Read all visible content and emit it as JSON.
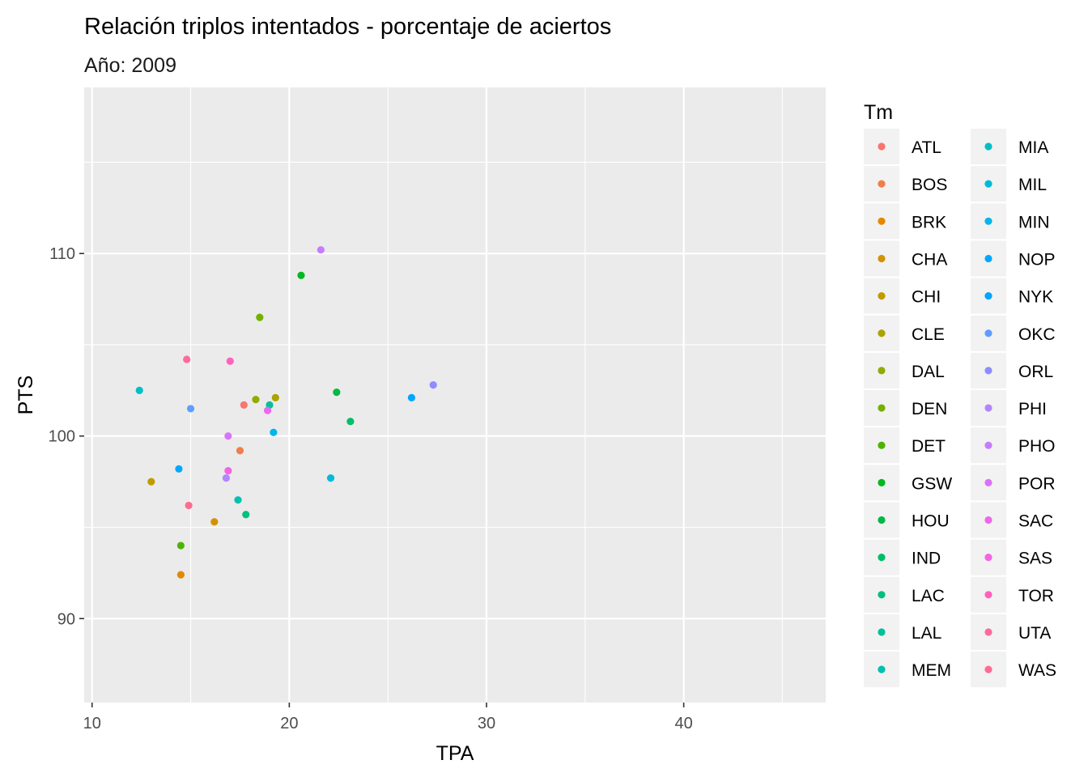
{
  "chart_data": {
    "type": "scatter",
    "title": "Relación triplos intentados - porcentaje de aciertos",
    "subtitle": "Año: 2009",
    "xlabel": "TPA",
    "ylabel": "PTS",
    "xlim": [
      9.6,
      47.2
    ],
    "ylim": [
      85.4,
      119.1
    ],
    "x_ticks": [
      10,
      20,
      30,
      40
    ],
    "y_ticks": [
      90,
      100,
      110
    ],
    "grid": true,
    "legend": {
      "title": "Tm",
      "placement": "right",
      "columns": 2,
      "entries": [
        {
          "label": "ATL",
          "color": "#F8766D"
        },
        {
          "label": "BOS",
          "color": "#F07E4B"
        },
        {
          "label": "BRK",
          "color": "#E38900"
        },
        {
          "label": "CHA",
          "color": "#D39200"
        },
        {
          "label": "CHI",
          "color": "#C09B00"
        },
        {
          "label": "CLE",
          "color": "#AAA300"
        },
        {
          "label": "DAL",
          "color": "#93AA00"
        },
        {
          "label": "DEN",
          "color": "#75B000"
        },
        {
          "label": "DET",
          "color": "#4CB400"
        },
        {
          "label": "GSW",
          "color": "#00B81F"
        },
        {
          "label": "HOU",
          "color": "#00BA44"
        },
        {
          "label": "IND",
          "color": "#00BE67"
        },
        {
          "label": "LAC",
          "color": "#00BF82"
        },
        {
          "label": "LAL",
          "color": "#00C19A"
        },
        {
          "label": "MEM",
          "color": "#00C0AF"
        },
        {
          "label": "MIA",
          "color": "#00BFC4"
        },
        {
          "label": "MIL",
          "color": "#00BBD7"
        },
        {
          "label": "MIN",
          "color": "#00B6EB"
        },
        {
          "label": "NOP",
          "color": "#00A9FF"
        },
        {
          "label": "NYK",
          "color": "#00A5FF"
        },
        {
          "label": "OKC",
          "color": "#619CFF"
        },
        {
          "label": "ORL",
          "color": "#8E8CFF"
        },
        {
          "label": "PHI",
          "color": "#B385FF"
        },
        {
          "label": "PHO",
          "color": "#C77CFF"
        },
        {
          "label": "POR",
          "color": "#DB72FB"
        },
        {
          "label": "SAC",
          "color": "#ED68ED"
        },
        {
          "label": "SAS",
          "color": "#F564E3"
        },
        {
          "label": "TOR",
          "color": "#FF62BC"
        },
        {
          "label": "UTA",
          "color": "#FF6A98"
        },
        {
          "label": "WAS",
          "color": "#FF6C91"
        }
      ]
    },
    "series": [
      {
        "name": "ATL",
        "x": [
          17.7
        ],
        "y": [
          101.7
        ]
      },
      {
        "name": "BOS",
        "x": [
          17.5
        ],
        "y": [
          99.2
        ]
      },
      {
        "name": "BRK",
        "x": [
          14.5
        ],
        "y": [
          92.4
        ]
      },
      {
        "name": "CHA",
        "x": [
          16.2
        ],
        "y": [
          95.3
        ]
      },
      {
        "name": "CHI",
        "x": [
          13.0
        ],
        "y": [
          97.5
        ]
      },
      {
        "name": "CLE",
        "x": [
          19.3
        ],
        "y": [
          102.1
        ]
      },
      {
        "name": "DAL",
        "x": [
          18.3
        ],
        "y": [
          102.0
        ]
      },
      {
        "name": "DEN",
        "x": [
          18.5
        ],
        "y": [
          106.5
        ]
      },
      {
        "name": "DET",
        "x": [
          14.5
        ],
        "y": [
          94.0
        ]
      },
      {
        "name": "GSW",
        "x": [
          20.6
        ],
        "y": [
          108.8
        ]
      },
      {
        "name": "HOU",
        "x": [
          22.4
        ],
        "y": [
          102.4
        ]
      },
      {
        "name": "IND",
        "x": [
          23.1
        ],
        "y": [
          100.8
        ]
      },
      {
        "name": "LAC",
        "x": [
          17.8
        ],
        "y": [
          95.7
        ]
      },
      {
        "name": "LAL",
        "x": [
          19.0
        ],
        "y": [
          101.7
        ]
      },
      {
        "name": "MEM",
        "x": [
          17.4
        ],
        "y": [
          96.5
        ]
      },
      {
        "name": "MIA",
        "x": [
          12.4
        ],
        "y": [
          102.5
        ]
      },
      {
        "name": "MIL",
        "x": [
          22.1
        ],
        "y": [
          97.7
        ]
      },
      {
        "name": "MIN",
        "x": [
          19.2
        ],
        "y": [
          100.2
        ]
      },
      {
        "name": "NOP",
        "x": [
          14.4
        ],
        "y": [
          98.2
        ]
      },
      {
        "name": "NYK",
        "x": [
          26.2
        ],
        "y": [
          102.1
        ]
      },
      {
        "name": "OKC",
        "x": [
          15.0
        ],
        "y": [
          101.5
        ]
      },
      {
        "name": "ORL",
        "x": [
          27.3
        ],
        "y": [
          102.8
        ]
      },
      {
        "name": "PHI",
        "x": [
          16.8
        ],
        "y": [
          97.7
        ]
      },
      {
        "name": "PHO",
        "x": [
          21.6
        ],
        "y": [
          110.2
        ]
      },
      {
        "name": "POR",
        "x": [
          16.9
        ],
        "y": [
          100.0
        ]
      },
      {
        "name": "SAC",
        "x": [
          18.9
        ],
        "y": [
          101.4
        ]
      },
      {
        "name": "SAS",
        "x": [
          16.9
        ],
        "y": [
          98.1
        ]
      },
      {
        "name": "TOR",
        "x": [
          17.0
        ],
        "y": [
          104.1
        ]
      },
      {
        "name": "UTA",
        "x": [
          14.8
        ],
        "y": [
          104.2
        ]
      },
      {
        "name": "WAS",
        "x": [
          14.9
        ],
        "y": [
          96.2
        ]
      }
    ]
  }
}
